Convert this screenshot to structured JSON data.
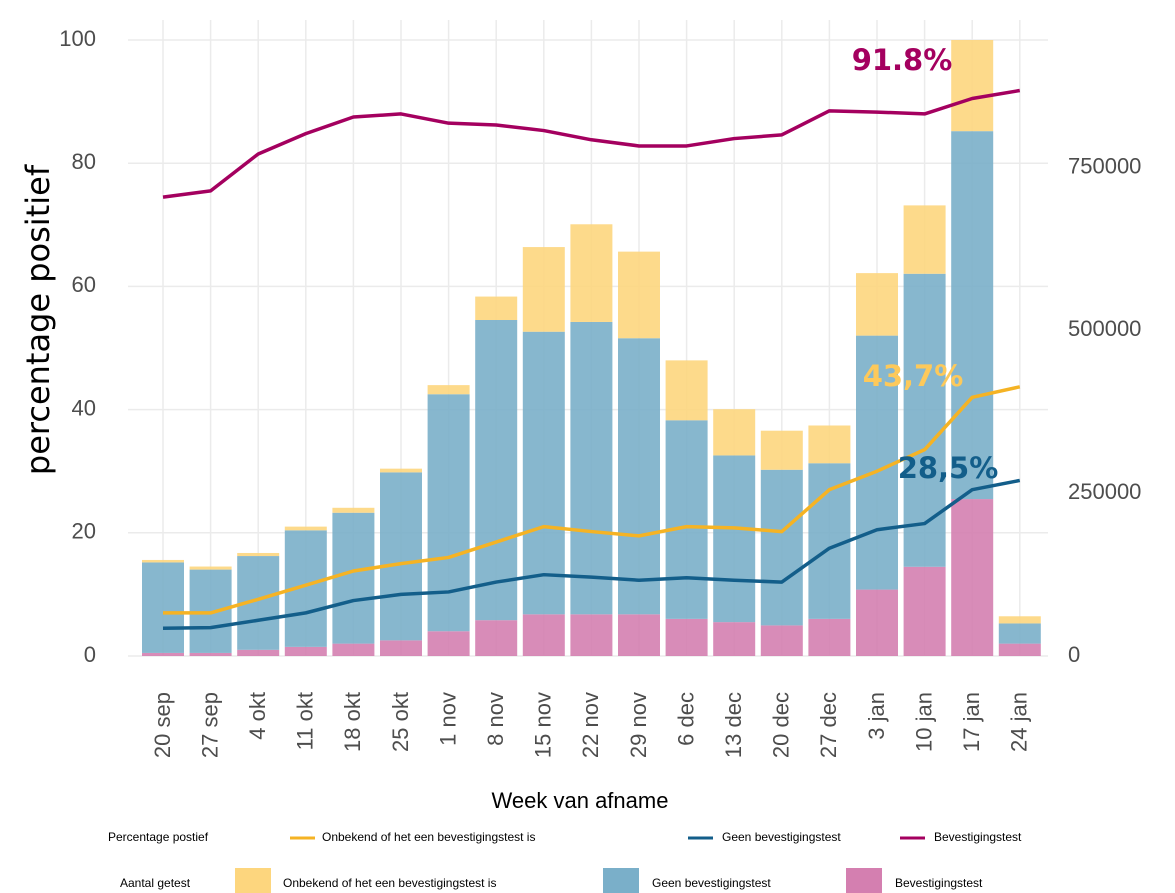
{
  "chart_data": {
    "type": "combo",
    "y_label": "percentage positief",
    "x_label": "Week van afname",
    "categories": [
      "20 sep",
      "27 sep",
      "4 okt",
      "11 okt",
      "18 okt",
      "25 okt",
      "1 nov",
      "8 nov",
      "15 nov",
      "22 nov",
      "29 nov",
      "6 dec",
      "13 dec",
      "20 dec",
      "27 dec",
      "3 jan",
      "10 jan",
      "17 jan",
      "24 jan"
    ],
    "ylim": [
      0,
      100
    ],
    "yticks": [
      0,
      20,
      40,
      60,
      80,
      100
    ],
    "y2lim": [
      0,
      946000
    ],
    "y2ticks": [
      0,
      250000,
      500000,
      750000
    ],
    "grid": true,
    "legend_titles": [
      "Percentage postief",
      "Aantal getest"
    ],
    "series": [
      {
        "type": "line",
        "name": "Onbekend of het een bevestigingstest is",
        "color": "#f5b324",
        "values": [
          7.0,
          7.0,
          9.2,
          11.5,
          13.8,
          15.0,
          16.0,
          18.5,
          21.0,
          20.2,
          19.5,
          21.0,
          20.8,
          20.2,
          27.0,
          30.0,
          33.5,
          42.0,
          43.7
        ]
      },
      {
        "type": "line",
        "name": "Geen bevestigingstest",
        "color": "#135e8a",
        "values": [
          4.5,
          4.6,
          5.8,
          7.0,
          9.0,
          10.0,
          10.4,
          12.0,
          13.2,
          12.8,
          12.3,
          12.7,
          12.3,
          12.0,
          17.5,
          20.5,
          21.5,
          27.0,
          28.5
        ]
      },
      {
        "type": "line",
        "name": "Bevestigingstest",
        "color": "#a4005f",
        "values": [
          74.5,
          75.5,
          81.5,
          84.8,
          87.5,
          88.0,
          86.5,
          86.2,
          85.3,
          83.8,
          82.8,
          82.8,
          84.0,
          84.6,
          88.5,
          88.3,
          88.0,
          90.5,
          91.8
        ]
      },
      {
        "type": "bar",
        "axis": "y2",
        "name": "Onbekend of het een bevestigingstest is",
        "color": "#fdd67e",
        "values": [
          3800,
          4700,
          4700,
          5700,
          7600,
          5700,
          14000,
          36000,
          130000,
          150000,
          133000,
          92000,
          71000,
          60000,
          58000,
          96000,
          105000,
          140000,
          11000
        ]
      },
      {
        "type": "bar",
        "axis": "y2",
        "name": "Geen bevestigingstest",
        "color": "#7aafc9",
        "values": [
          139000,
          128000,
          144000,
          179000,
          201000,
          258000,
          364000,
          461000,
          434000,
          449000,
          424000,
          305000,
          256000,
          239000,
          239000,
          390000,
          450000,
          565000,
          31000
        ]
      },
      {
        "type": "bar",
        "axis": "y2",
        "name": "Bevestigingstest",
        "color": "#d47fb0",
        "values": [
          4700,
          4700,
          9500,
          14000,
          19000,
          24000,
          38000,
          55000,
          64000,
          64000,
          64000,
          57000,
          52000,
          47000,
          57000,
          102000,
          137000,
          241000,
          19000
        ]
      }
    ],
    "annotations": [
      {
        "text": "91.8%",
        "color": "#a4005f"
      },
      {
        "text": "43,7%",
        "color": "#fdc95a"
      },
      {
        "text": "28,5%",
        "color": "#135e8a"
      }
    ]
  }
}
